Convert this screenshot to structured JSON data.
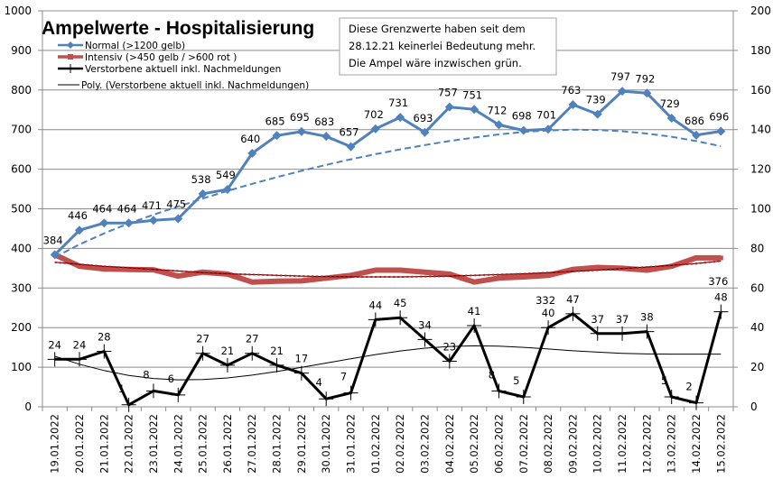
{
  "chart_data": {
    "type": "line",
    "title": "Ampelwerte - Hospitalisierung",
    "note": [
      "Diese Grenzwerte haben seit dem",
      "28.12.21  keinerlei Bedeutung mehr.",
      "Die Ampel wäre inzwischen grün."
    ],
    "categories": [
      "19.01.2022",
      "20.01.2022",
      "21.01.2022",
      "22.01.2022",
      "23.01.2022",
      "24.01.2022",
      "25.01.2022",
      "26.01.2022",
      "27.01.2022",
      "28.01.2022",
      "29.01.2022",
      "30.01.2022",
      "31.01.2022",
      "01.02.2022",
      "02.02.2022",
      "03.02.2022",
      "04.02.2022",
      "05.02.2022",
      "06.02.2022",
      "07.02.2022",
      "08.02.2022",
      "09.02.2022",
      "10.02.2022",
      "11.02.2022",
      "12.02.2022",
      "13.02.2022",
      "14.02.2022",
      "15.02.2022"
    ],
    "y_left": {
      "ylim": [
        0,
        1000
      ],
      "ticks": [
        "0",
        "100",
        "200",
        "300",
        "400",
        "500",
        "600",
        "700",
        "800",
        "900",
        "1000"
      ]
    },
    "y_right": {
      "ylim": [
        0,
        200
      ],
      "ticks": [
        "0",
        "20",
        "40",
        "60",
        "80",
        "100",
        "120",
        "140",
        "160",
        "180",
        "200"
      ]
    },
    "grid": true,
    "legend_position": "top-left",
    "series": [
      {
        "name": "Normal (>1200 gelb)",
        "axis": "left",
        "color": "#4f81bd",
        "marker": "diamond",
        "values": [
          384,
          446,
          464,
          464,
          471,
          475,
          538,
          549,
          640,
          685,
          695,
          683,
          657,
          702,
          731,
          693,
          757,
          751,
          712,
          698,
          701,
          763,
          739,
          797,
          792,
          729,
          686,
          696
        ],
        "labels": [
          "384",
          "446",
          "464",
          "464",
          "471",
          "475",
          "538",
          "549",
          "640",
          "685",
          "695",
          "683",
          "657",
          "702",
          "731",
          "693",
          "757",
          "751",
          "712",
          "698",
          "701",
          "763",
          "739",
          "797",
          "792",
          "729",
          "686",
          "696"
        ],
        "trendline": "dashed"
      },
      {
        "name": "Intensiv (>450 gelb / >600 rot )",
        "axis": "left",
        "color": "#c0504d",
        "marker": "square",
        "values": [
          384,
          355,
          348,
          347,
          346,
          330,
          340,
          335,
          315,
          317,
          318,
          325,
          332,
          345,
          345,
          340,
          335,
          315,
          325,
          328,
          332,
          347,
          352,
          350,
          345,
          355,
          376,
          376
        ],
        "labels": [
          "",
          "",
          "",
          "",
          "",
          "",
          "",
          "",
          "",
          "",
          "",
          "",
          "",
          "",
          "",
          "",
          "",
          "",
          "",
          "",
          "332",
          "",
          "",
          "",
          "",
          "",
          "",
          "376"
        ],
        "trendline": "dotted-red"
      },
      {
        "name": "Verstorbene aktuell inkl. Nachmeldungen",
        "axis": "right",
        "color": "#000000",
        "marker": "plus",
        "values": [
          24,
          24,
          28,
          1,
          8,
          6,
          27,
          21,
          27,
          21,
          17,
          4,
          7,
          44,
          45,
          34,
          23,
          41,
          8,
          5,
          40,
          47,
          37,
          37,
          38,
          5,
          2,
          48
        ],
        "labels": [
          "24",
          "24",
          "28",
          "1",
          "8",
          "6",
          "27",
          "21",
          "27",
          "21",
          "17",
          "4",
          "7",
          "44",
          "45",
          "34",
          "23",
          "41",
          "8",
          "5",
          "40",
          "47",
          "37",
          "37",
          "38",
          "5",
          "2",
          "48"
        ]
      },
      {
        "name": "Poly. (Verstorbene aktuell inkl. Nachmeldungen)",
        "axis": "right",
        "color": "#000000",
        "values": [
          25.5,
          21.5,
          18.3,
          15.8,
          14.3,
          13.6,
          13.8,
          14.6,
          16.0,
          17.8,
          19.9,
          22.1,
          24.3,
          26.4,
          28.2,
          29.6,
          30.5,
          30.8,
          30.6,
          30.0,
          29.2,
          28.3,
          27.6,
          27.0,
          26.7,
          26.6,
          26.6,
          26.6
        ]
      }
    ],
    "trend_normal": [
      378,
      410,
      438,
      463,
      485,
      506,
      526,
      545,
      563,
      580,
      596,
      611,
      625,
      638,
      650,
      661,
      671,
      680,
      688,
      694,
      698,
      700,
      699,
      696,
      690,
      682,
      671,
      658
    ],
    "trend_intensiv": [
      365,
      360,
      355,
      351,
      347,
      343,
      339,
      336,
      334,
      332,
      330,
      329,
      328,
      328,
      328,
      329,
      330,
      332,
      334,
      336,
      339,
      342,
      345,
      349,
      353,
      357,
      362,
      368
    ]
  }
}
